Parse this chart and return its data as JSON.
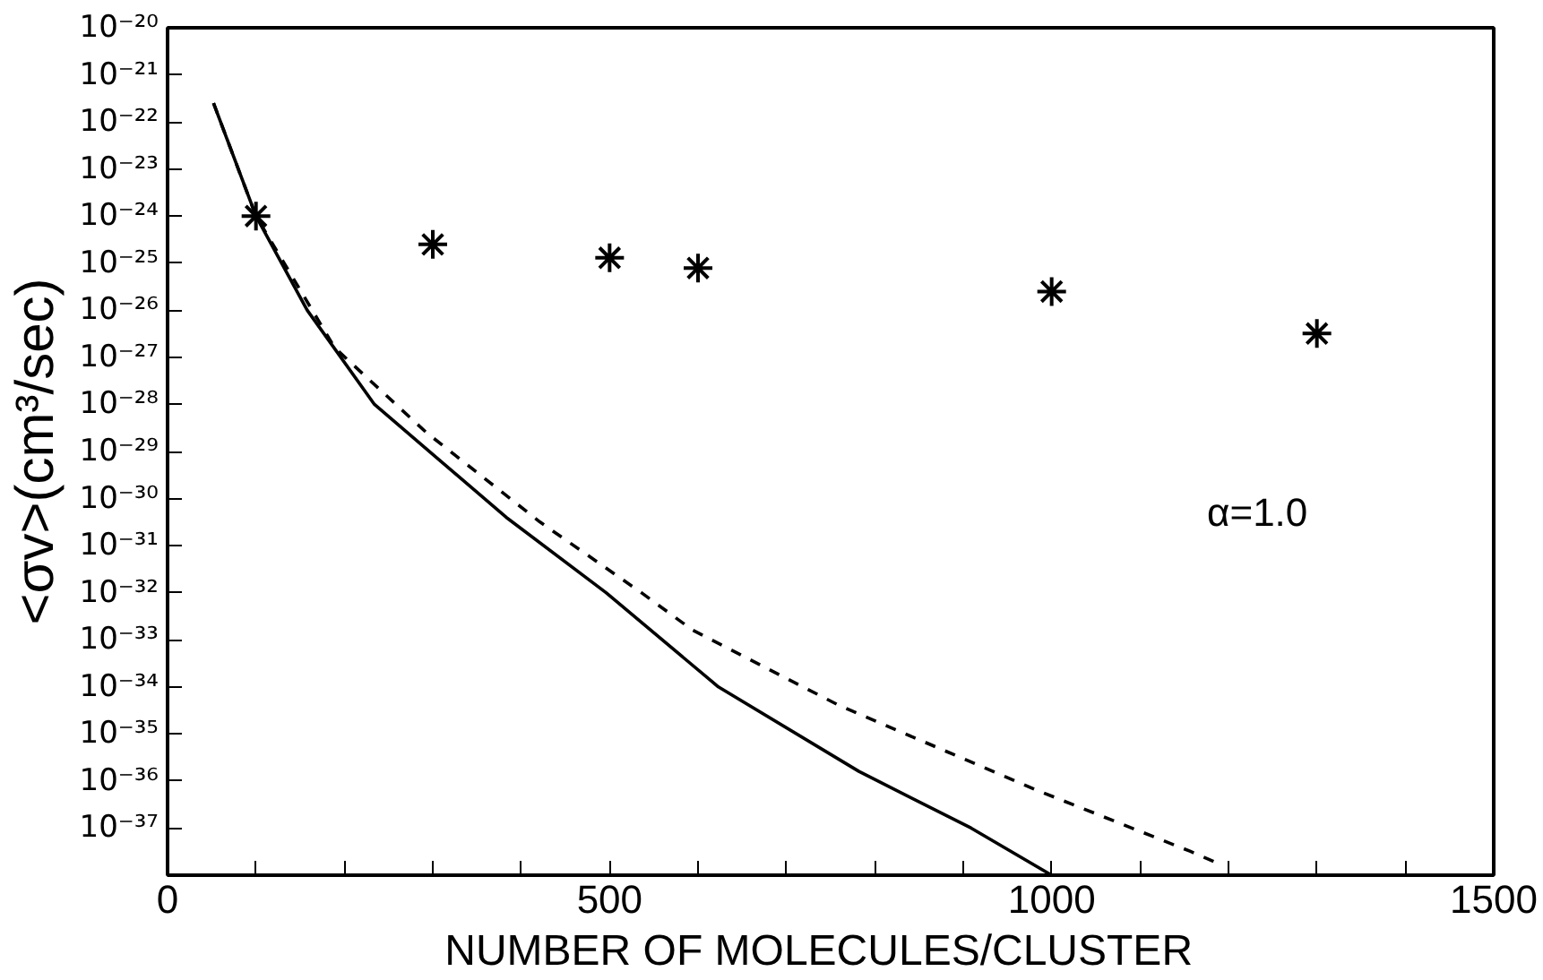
{
  "chart_data": {
    "type": "line",
    "xlabel": "NUMBER  OF  MOLECULES/CLUSTER",
    "ylabel": "<σv>(cm³/sec)",
    "log": "y",
    "grid": false,
    "xlim": [
      0,
      1500
    ],
    "ylim": [
      1e-38,
      1e-20
    ],
    "xticks": [
      0,
      {
        "value": 100,
        "label": null
      },
      {
        "value": 200,
        "label": null
      },
      {
        "value": 300,
        "label": null
      },
      {
        "value": 400,
        "label": null
      },
      500,
      {
        "value": 600,
        "label": null
      },
      {
        "value": 700,
        "label": null
      },
      {
        "value": 800,
        "label": null
      },
      {
        "value": 900,
        "label": null
      },
      1000,
      {
        "value": 1100,
        "label": null
      },
      {
        "value": 1200,
        "label": null
      },
      {
        "value": 1300,
        "label": null
      },
      {
        "value": 1400,
        "label": null
      },
      1500
    ],
    "yticks": [
      {
        "value": 1e-20,
        "label": "10⁻²⁰"
      },
      {
        "value": 1e-21,
        "label": "10⁻²¹"
      },
      {
        "value": 1e-22,
        "label": "10⁻²²"
      },
      {
        "value": 1e-23,
        "label": "10⁻²³"
      },
      {
        "value": 1e-24,
        "label": "10⁻²⁴"
      },
      {
        "value": 1e-25,
        "label": "10⁻²⁵"
      },
      {
        "value": 1e-26,
        "label": "10⁻²⁶"
      },
      {
        "value": 1e-27,
        "label": "10⁻²⁷"
      },
      {
        "value": 1e-28,
        "label": "10⁻²⁸"
      },
      {
        "value": 1e-29,
        "label": "10⁻²⁹"
      },
      {
        "value": 1e-30,
        "label": "10⁻³⁰"
      },
      {
        "value": 1e-31,
        "label": "10⁻³¹"
      },
      {
        "value": 1e-32,
        "label": "10⁻³²"
      },
      {
        "value": 1e-33,
        "label": "10⁻³³"
      },
      {
        "value": 1e-34,
        "label": "10⁻³⁴"
      },
      {
        "value": 1e-35,
        "label": "10⁻³⁵"
      },
      {
        "value": 1e-36,
        "label": "10⁻³⁶"
      },
      {
        "value": 1e-37,
        "label": "10⁻³⁷"
      }
    ],
    "series": [
      {
        "type": "scatter",
        "marker": "cross",
        "color": "#000000",
        "x": [
          100,
          300,
          500,
          600,
          1000,
          1300
        ],
        "values": [
          1e-24,
          2.5e-25,
          1.3e-25,
          7.9e-26,
          2.5e-26,
          3.2e-27
        ]
      },
      {
        "line_style": "solid",
        "marker": "none",
        "color": "#000000",
        "x": [
          52,
          100,
          158,
          234,
          383,
          496,
          623,
          782,
          909,
          1000
        ],
        "values": [
          2.5e-22,
          1e-24,
          1e-26,
          1e-28,
          4e-31,
          1e-32,
          1e-34,
          1.6e-36,
          1e-37,
          1e-38
        ]
      },
      {
        "line_style": "dashed",
        "marker": "none",
        "color": "#000000",
        "x": [
          52,
          100,
          189,
          293,
          421,
          536,
          594,
          760,
          984,
          1157,
          1194
        ],
        "values": [
          2.5e-22,
          1e-24,
          1.6e-27,
          2.5e-29,
          3.2e-31,
          1e-32,
          1.6e-33,
          4e-35,
          6.3e-37,
          3.2e-38,
          1.6e-38
        ]
      }
    ],
    "annotations": [
      "α=1.0"
    ]
  }
}
